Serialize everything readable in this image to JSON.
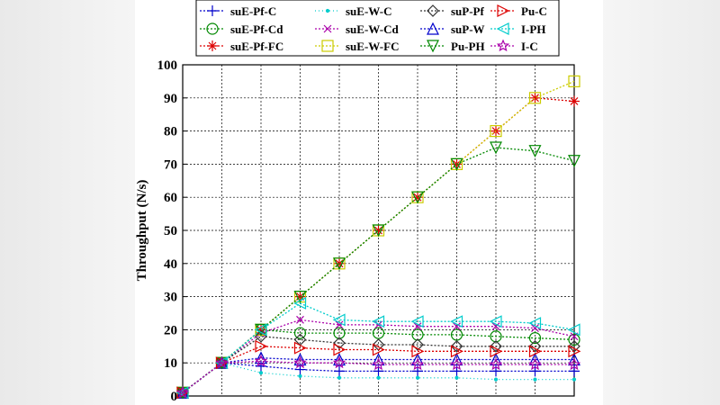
{
  "chart_data": {
    "type": "line",
    "ylabel": "Throughput (N/s)",
    "xlabel": "",
    "title": "",
    "ylim": [
      0,
      100
    ],
    "yticks": [
      0,
      10,
      20,
      30,
      40,
      50,
      60,
      70,
      80,
      90,
      100
    ],
    "x": [
      0,
      1,
      2,
      3,
      4,
      5,
      6,
      7,
      8,
      9,
      10
    ],
    "grid": true,
    "legend_position": "top",
    "series": [
      {
        "name": "suE-Pf-C",
        "color": "#0000cc",
        "marker": "plus",
        "values": [
          1,
          10,
          9,
          8,
          7.5,
          7.5,
          7.5,
          7.5,
          7.5,
          7.5,
          7.5
        ]
      },
      {
        "name": "suE-Pf-Cd",
        "color": "#008800",
        "marker": "circle",
        "values": [
          1,
          10,
          20,
          19,
          19,
          19,
          18.5,
          18.5,
          18,
          17.5,
          17
        ]
      },
      {
        "name": "suE-Pf-FC",
        "color": "#dd0000",
        "marker": "asterisk",
        "values": [
          1,
          10,
          20,
          30,
          40,
          50,
          60,
          70,
          80,
          90,
          89
        ]
      },
      {
        "name": "suE-W-C",
        "color": "#00cccc",
        "marker": "point",
        "values": [
          1,
          10,
          7,
          6,
          5.5,
          5.5,
          5.5,
          5.5,
          5,
          5,
          5
        ]
      },
      {
        "name": "suE-W-Cd",
        "color": "#aa00aa",
        "marker": "cross",
        "values": [
          1,
          10,
          19,
          23,
          21.5,
          21.5,
          21,
          21,
          21,
          20.5,
          18
        ]
      },
      {
        "name": "suE-W-FC",
        "color": "#cccc00",
        "marker": "square",
        "values": [
          1,
          10,
          20,
          30,
          40,
          50,
          60,
          70,
          80,
          90,
          95
        ]
      },
      {
        "name": "suP-Pf",
        "color": "#333333",
        "marker": "diamond",
        "values": [
          1,
          10,
          18,
          17,
          16,
          15.5,
          15.5,
          15,
          15,
          15,
          15
        ]
      },
      {
        "name": "suP-W",
        "color": "#0000cc",
        "marker": "triangle-up",
        "values": [
          1,
          10,
          11.5,
          11,
          11,
          11,
          11,
          11,
          11,
          11,
          11
        ]
      },
      {
        "name": "Pu-PH",
        "color": "#008800",
        "marker": "triangle-down",
        "values": [
          1,
          10,
          20,
          30,
          40,
          50,
          60,
          70,
          75,
          74,
          71
        ]
      },
      {
        "name": "Pu-C",
        "color": "#dd0000",
        "marker": "triangle-right",
        "values": [
          1,
          10,
          15,
          14.5,
          14,
          14,
          13.5,
          13.5,
          13.5,
          13.5,
          13.5
        ]
      },
      {
        "name": "I-PH",
        "color": "#00cccc",
        "marker": "triangle-left",
        "values": [
          1,
          10,
          20,
          28,
          23,
          22.5,
          22.5,
          22.5,
          22.5,
          22,
          20
        ]
      },
      {
        "name": "I-C",
        "color": "#aa00aa",
        "marker": "star",
        "values": [
          1,
          10,
          10.5,
          10,
          10,
          9.5,
          9.5,
          9.5,
          9.5,
          9.5,
          9.5
        ]
      }
    ]
  }
}
